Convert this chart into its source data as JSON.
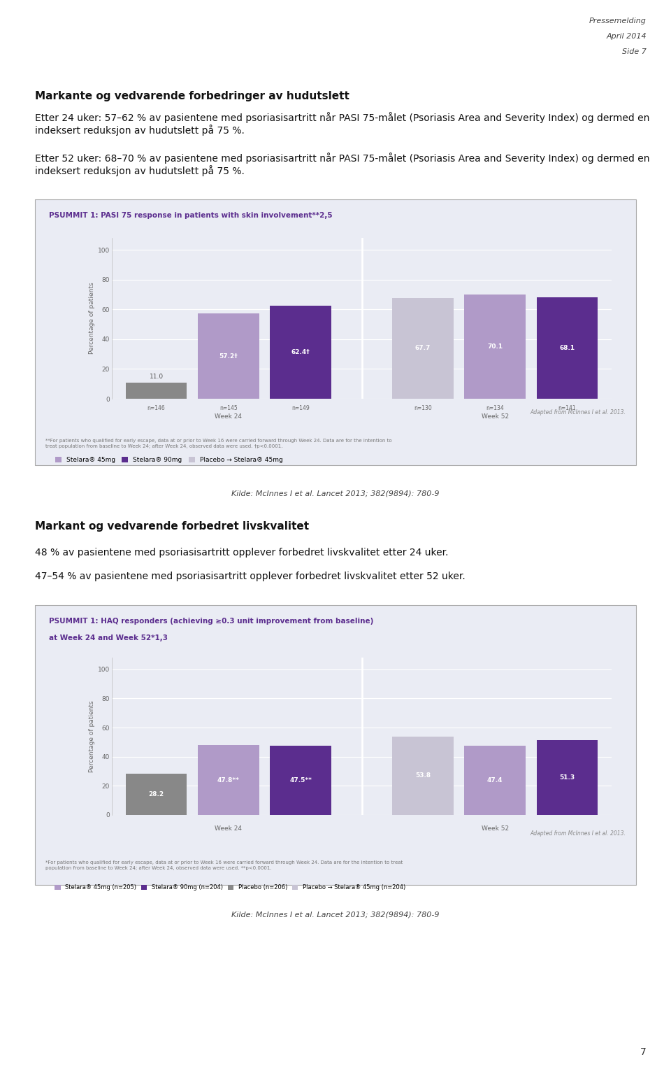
{
  "page_header": [
    "Pressemelding",
    "April 2014",
    "Side 7"
  ],
  "section1_title": "Markante og vedvarende forbedringer av hudutslett",
  "section1_text1": "Etter 24 uker: 57–62 % av pasientene med psoriasisartritt når PASI 75-målet (Psoriasis Area and Severity Index) og dermed en indeksert reduksjon av hudutslett på 75 %.",
  "section1_text2": "Etter 52 uker: 68–70 % av pasientene med psoriasisartritt når PASI 75-målet (Psoriasis Area and Severity Index) og dermed en indeksert reduksjon av hudutslett på 75 %.",
  "chart1_title": "PSUMMIT 1: PASI 75 response in patients with skin involvement**",
  "chart1_title_sup": "2,5",
  "chart1_ylabel": "Percentage of patients",
  "chart1_week24_n": [
    "n=146",
    "n=145",
    "n=149"
  ],
  "chart1_week52_n": [
    "n=130",
    "n=134",
    "n=141"
  ],
  "chart1_week24_values": [
    11.0,
    57.2,
    62.4
  ],
  "chart1_week52_values": [
    67.7,
    70.1,
    68.1
  ],
  "chart1_week24_labels": [
    "11.0",
    "57.2†",
    "62.4†"
  ],
  "chart1_week52_labels": [
    "67.7",
    "70.1",
    "68.1"
  ],
  "chart1_legend": [
    "Stelara® 45mg",
    "Stelara® 90mg",
    "Placebo → Stelara® 45mg"
  ],
  "chart1_colors_w24": [
    "#888888",
    "#b09ac8",
    "#5b2d8e"
  ],
  "chart1_colors_w52": [
    "#c8c4d4",
    "#b09ac8",
    "#5b2d8e"
  ],
  "chart1_adapted": "Adapted from McInnes I et al. 2013.",
  "chart1_footnote": "**For patients who qualified for early escape, data at or prior to Week 16 were carried forward through Week 24. Data are for the intention to\ntreat population from baseline to Week 24; after Week 24, observed data were used. †p<0.0001.",
  "chart1_bg": "#eaecf4",
  "chart1_yticks": [
    0,
    20,
    40,
    60,
    80,
    100
  ],
  "source1": "Kilde: McInnes I et al. Lancet 2013; 382(9894): 780-9",
  "section2_title": "Markant og vedvarende forbedret livskvalitet",
  "section2_text1": "48 % av pasientene med psoriasisartritt opplever forbedret livskvalitet etter 24 uker.",
  "section2_text2": "47–54 % av pasientene med psoriasisartritt opplever forbedret livskvalitet etter 52 uker.",
  "chart2_title_line1": "PSUMMIT 1: HAQ responders (achieving ≥0.3 unit improvement from baseline)",
  "chart2_title_line2": "at Week 24 and Week 52*",
  "chart2_title_sup": "1,3",
  "chart2_ylabel": "Percentage of patients",
  "chart2_week24_values": [
    28.2,
    47.8,
    47.5
  ],
  "chart2_week52_values": [
    53.8,
    47.4,
    51.3
  ],
  "chart2_week24_labels": [
    "28.2",
    "47.8**",
    "47.5**"
  ],
  "chart2_week52_labels": [
    "53.8",
    "47.4",
    "51.3"
  ],
  "chart2_legend": [
    "Stelara® 45mg (n=205)",
    "Stelara® 90mg (n=204)",
    "Placebo (n=206)",
    "Placebo → Stelara® 45mg (n=204)"
  ],
  "chart2_colors_w24": [
    "#888888",
    "#b09ac8",
    "#5b2d8e"
  ],
  "chart2_colors_w52": [
    "#c8c4d4",
    "#b09ac8",
    "#5b2d8e"
  ],
  "chart2_adapted": "Adapted from McInnes I et al. 2013.",
  "chart2_footnote": "*For patients who qualified for early escape, data at or prior to Week 16 were carried forward through Week 24. Data are for the intention to treat\npopulation from baseline to Week 24; after Week 24, observed data were used. **p<0.0001.",
  "chart2_bg": "#eaecf4",
  "chart2_yticks": [
    0,
    20,
    40,
    60,
    80,
    100
  ],
  "source2": "Kilde: McInnes I et al. Lancet 2013; 382(9894): 780-9",
  "page_number": "7",
  "bg_color": "#ffffff"
}
